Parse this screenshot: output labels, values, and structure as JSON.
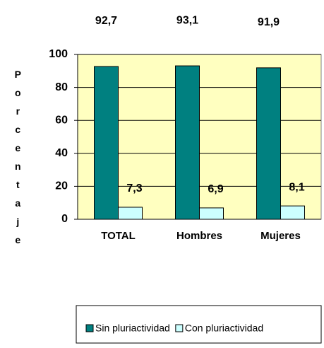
{
  "chart_data": {
    "type": "bar",
    "y_label": "Porcentaje",
    "categories": [
      "TOTAL",
      "Hombres",
      "Mujeres"
    ],
    "series": [
      {
        "name": "Sin pluriactividad",
        "color": "#008080",
        "values": [
          92.7,
          93.1,
          91.9
        ],
        "value_labels": [
          "92,7",
          "93,1",
          "91,9"
        ]
      },
      {
        "name": "Con pluriactividad",
        "color": "#ccffff",
        "values": [
          7.3,
          6.9,
          8.1
        ],
        "value_labels": [
          "7,3",
          "6,9",
          "8,1"
        ]
      }
    ],
    "ylim": [
      0,
      100
    ],
    "yticks": [
      0,
      20,
      40,
      60,
      80,
      100
    ],
    "grid": true,
    "plot_background": "#ffffc0",
    "legend": "bottom"
  }
}
